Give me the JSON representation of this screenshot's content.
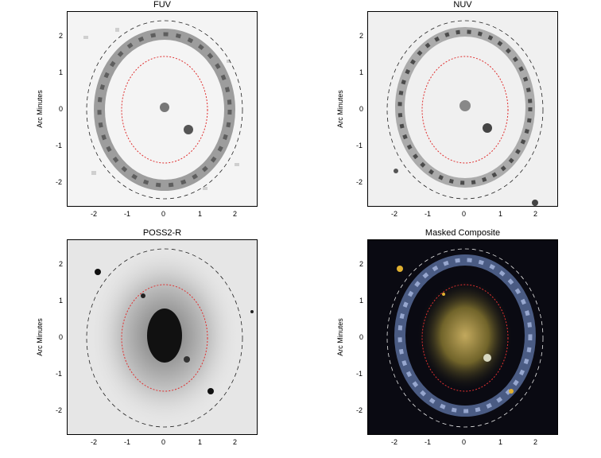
{
  "panels": [
    {
      "id": "fuv",
      "title": "FUV",
      "ylabel": "Arc Minutes",
      "style": "uv"
    },
    {
      "id": "nuv",
      "title": "NUV",
      "ylabel": "Arc Minutes",
      "style": "uv"
    },
    {
      "id": "poss",
      "title": "POSS2-R",
      "ylabel": "Arc Minutes",
      "style": "optical"
    },
    {
      "id": "comp",
      "title": "Masked Composite",
      "ylabel": "Arc Minutes",
      "style": "composite"
    }
  ],
  "xticks": [
    "-2",
    "-1",
    "0",
    "1",
    "2"
  ],
  "yticks": [
    "2",
    "1",
    "0",
    "-1",
    "-2"
  ],
  "colors": {
    "inner_ellipse": "#e03030",
    "outer_ellipse_dark": "#222222",
    "outer_ellipse_light": "#e8e8e8",
    "composite_ring": "#7f9fe0",
    "composite_core": "#e0c060"
  }
}
